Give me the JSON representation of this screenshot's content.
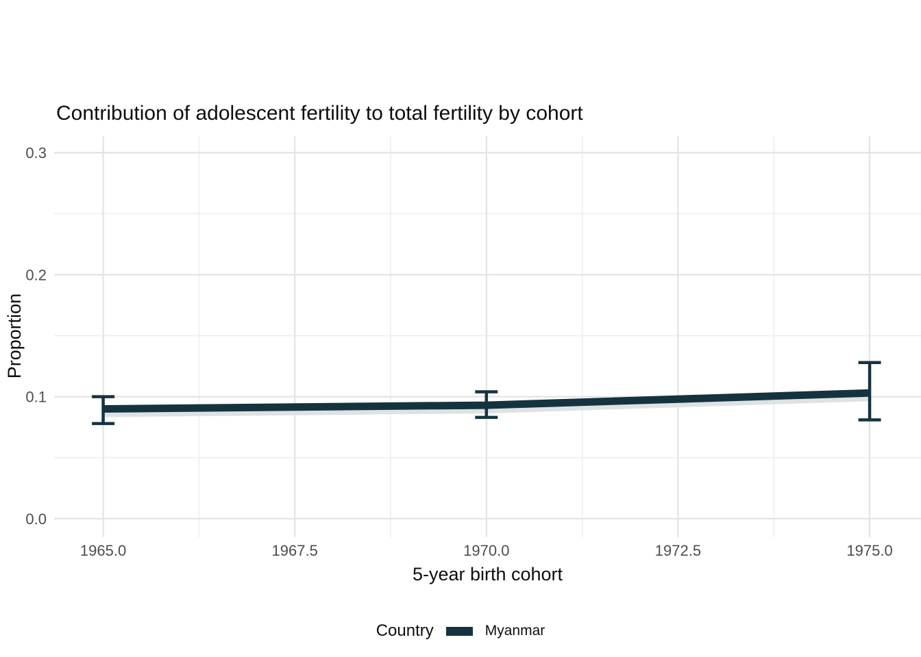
{
  "chart": {
    "title": "Contribution of adolescent fertility to total fertility by cohort",
    "xlabel": "5-year birth cohort",
    "ylabel": "Proportion"
  },
  "legend": {
    "title": "Country",
    "items": [
      {
        "label": "Myanmar",
        "color": "#15333F",
        "swatch_type": "line"
      }
    ]
  },
  "chart_data": {
    "type": "line",
    "title": "Contribution of adolescent fertility to total fertility by cohort",
    "xlabel": "5-year birth cohort",
    "ylabel": "Proportion",
    "series": [
      {
        "name": "Myanmar",
        "color": "#15333F",
        "x": [
          1965,
          1970,
          1975
        ],
        "y": [
          0.09,
          0.093,
          0.103
        ],
        "ci_lower": [
          0.078,
          0.083,
          0.081
        ],
        "ci_upper": [
          0.1,
          0.104,
          0.128
        ]
      }
    ],
    "x_ticks": {
      "values": [
        1965.0,
        1967.5,
        1970.0,
        1972.5,
        1975.0
      ],
      "labels": [
        "1965.0",
        "1967.5",
        "1970.0",
        "1972.5",
        "1975.0"
      ]
    },
    "y_ticks": {
      "values": [
        0.0,
        0.1,
        0.2,
        0.3
      ],
      "labels": [
        "0.0",
        "0.1",
        "0.2",
        "0.3"
      ]
    },
    "xlim": [
      1964.36,
      1975.67
    ],
    "ylim": [
      -0.0152,
      0.3135
    ],
    "grid": {
      "major_color": "#e4e4e4",
      "minor_color": "#efefef",
      "show_minor": true
    },
    "ribbon_color": "#dee2e4",
    "tick_label_color": "#4d4d4d",
    "legend_position": "bottom",
    "errorbars": true
  }
}
